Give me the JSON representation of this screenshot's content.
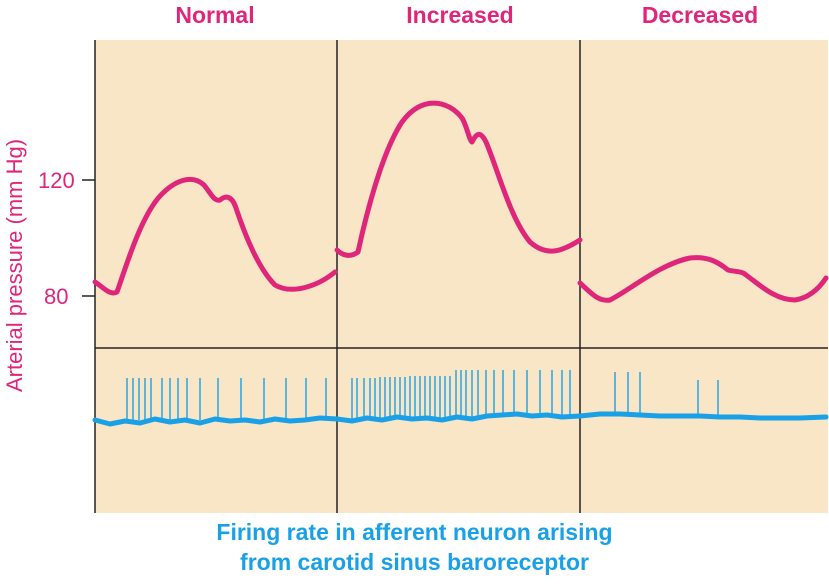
{
  "columns": [
    {
      "title": "Normal"
    },
    {
      "title": "Increased"
    },
    {
      "title": "Decreased"
    }
  ],
  "y_axis": {
    "title": "Arterial pressure (mm Hg)",
    "ticks": [
      "120",
      "80"
    ]
  },
  "caption": {
    "line1": "Firing rate in afferent neuron arising",
    "line2": "from carotid sinus baroreceptor"
  },
  "colors": {
    "pressure_trace": "#e0267a",
    "neuron_trace": "#1aa0e6",
    "panel_bg": "#f8e6c6",
    "grid": "#222222"
  }
}
